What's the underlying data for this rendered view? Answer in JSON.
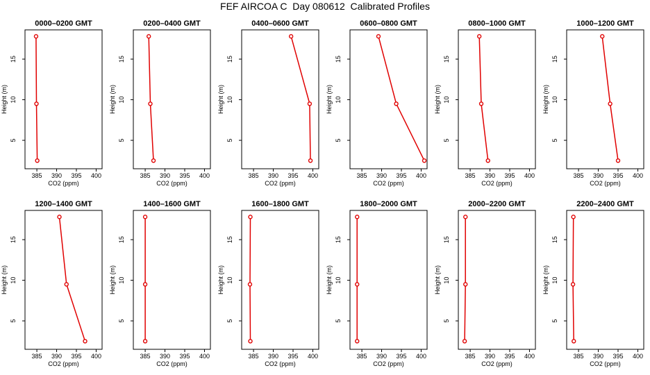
{
  "title": "FEF AIRCOA C  Day 080612  Calibrated Profiles",
  "colors": {
    "series": "#e00000",
    "axis": "#000000",
    "background": "#ffffff"
  },
  "chart_data": [
    {
      "type": "line",
      "title": "0000–0200 GMT",
      "xlabel": "CO2 (ppm)",
      "ylabel": "Height (m)",
      "xlim": [
        382,
        401.5
      ],
      "ylim": [
        1.5,
        18.6
      ],
      "xticks": [
        385,
        390,
        395,
        400
      ],
      "yticks": [
        5,
        10,
        15
      ],
      "grid": false,
      "series": [
        {
          "x": [
            384.8,
            384.9,
            385.1
          ],
          "y": [
            17.8,
            9.5,
            2.5
          ]
        }
      ]
    },
    {
      "type": "line",
      "title": "0200–0400 GMT",
      "xlabel": "CO2 (ppm)",
      "ylabel": "Height (m)",
      "xlim": [
        382,
        401.5
      ],
      "ylim": [
        1.5,
        18.6
      ],
      "xticks": [
        385,
        390,
        395,
        400
      ],
      "yticks": [
        5,
        10,
        15
      ],
      "grid": false,
      "series": [
        {
          "x": [
            385.9,
            386.3,
            387.1
          ],
          "y": [
            17.8,
            9.5,
            2.5
          ]
        }
      ]
    },
    {
      "type": "line",
      "title": "0400–0600 GMT",
      "xlabel": "CO2 (ppm)",
      "ylabel": "Height (m)",
      "xlim": [
        382,
        401.5
      ],
      "ylim": [
        1.5,
        18.6
      ],
      "xticks": [
        385,
        390,
        395,
        400
      ],
      "yticks": [
        5,
        10,
        15
      ],
      "grid": false,
      "series": [
        {
          "x": [
            394.5,
            399.2,
            399.4
          ],
          "y": [
            17.8,
            9.5,
            2.5
          ]
        }
      ]
    },
    {
      "type": "line",
      "title": "0600–0800 GMT",
      "xlabel": "CO2 (ppm)",
      "ylabel": "Height (m)",
      "xlim": [
        382,
        401.5
      ],
      "ylim": [
        1.5,
        18.6
      ],
      "xticks": [
        385,
        390,
        395,
        400
      ],
      "yticks": [
        5,
        10,
        15
      ],
      "grid": false,
      "series": [
        {
          "x": [
            389.2,
            393.7,
            400.8
          ],
          "y": [
            17.8,
            9.5,
            2.5
          ]
        }
      ]
    },
    {
      "type": "line",
      "title": "0800–1000 GMT",
      "xlabel": "CO2 (ppm)",
      "ylabel": "Height (m)",
      "xlim": [
        382,
        401.5
      ],
      "ylim": [
        1.5,
        18.6
      ],
      "xticks": [
        385,
        390,
        395,
        400
      ],
      "yticks": [
        5,
        10,
        15
      ],
      "grid": false,
      "series": [
        {
          "x": [
            387.3,
            387.8,
            389.5
          ],
          "y": [
            17.8,
            9.5,
            2.5
          ]
        }
      ]
    },
    {
      "type": "line",
      "title": "1000–1200 GMT",
      "xlabel": "CO2 (ppm)",
      "ylabel": "Height (m)",
      "xlim": [
        382,
        401.5
      ],
      "ylim": [
        1.5,
        18.6
      ],
      "xticks": [
        385,
        390,
        395,
        400
      ],
      "yticks": [
        5,
        10,
        15
      ],
      "grid": false,
      "series": [
        {
          "x": [
            391.0,
            393.0,
            395.0
          ],
          "y": [
            17.8,
            9.5,
            2.5
          ]
        }
      ]
    },
    {
      "type": "line",
      "title": "1200–1400 GMT",
      "xlabel": "CO2 (ppm)",
      "ylabel": "Height (m)",
      "xlim": [
        382,
        401.5
      ],
      "ylim": [
        1.5,
        18.6
      ],
      "xticks": [
        385,
        390,
        395,
        400
      ],
      "yticks": [
        5,
        10,
        15
      ],
      "grid": false,
      "series": [
        {
          "x": [
            390.7,
            392.5,
            397.2
          ],
          "y": [
            17.8,
            9.5,
            2.5
          ]
        }
      ]
    },
    {
      "type": "line",
      "title": "1400–1600 GMT",
      "xlabel": "CO2 (ppm)",
      "ylabel": "Height (m)",
      "xlim": [
        382,
        401.5
      ],
      "ylim": [
        1.5,
        18.6
      ],
      "xticks": [
        385,
        390,
        395,
        400
      ],
      "yticks": [
        5,
        10,
        15
      ],
      "grid": false,
      "series": [
        {
          "x": [
            385.0,
            385.0,
            385.0
          ],
          "y": [
            17.8,
            9.5,
            2.5
          ]
        }
      ]
    },
    {
      "type": "line",
      "title": "1600–1800 GMT",
      "xlabel": "CO2 (ppm)",
      "ylabel": "Height (m)",
      "xlim": [
        382,
        401.5
      ],
      "ylim": [
        1.5,
        18.6
      ],
      "xticks": [
        385,
        390,
        395,
        400
      ],
      "yticks": [
        5,
        10,
        15
      ],
      "grid": false,
      "series": [
        {
          "x": [
            384.2,
            384.1,
            384.2
          ],
          "y": [
            17.8,
            9.5,
            2.5
          ]
        }
      ]
    },
    {
      "type": "line",
      "title": "1800–2000 GMT",
      "xlabel": "CO2 (ppm)",
      "ylabel": "Height (m)",
      "xlim": [
        382,
        401.5
      ],
      "ylim": [
        1.5,
        18.6
      ],
      "xticks": [
        385,
        390,
        395,
        400
      ],
      "yticks": [
        5,
        10,
        15
      ],
      "grid": false,
      "series": [
        {
          "x": [
            383.8,
            383.8,
            383.8
          ],
          "y": [
            17.8,
            9.5,
            2.5
          ]
        }
      ]
    },
    {
      "type": "line",
      "title": "2000–2200 GMT",
      "xlabel": "CO2 (ppm)",
      "ylabel": "Height (m)",
      "xlim": [
        382,
        401.5
      ],
      "ylim": [
        1.5,
        18.6
      ],
      "xticks": [
        385,
        390,
        395,
        400
      ],
      "yticks": [
        5,
        10,
        15
      ],
      "grid": false,
      "series": [
        {
          "x": [
            383.8,
            383.8,
            383.6
          ],
          "y": [
            17.8,
            9.5,
            2.5
          ]
        }
      ]
    },
    {
      "type": "line",
      "title": "2200–2400 GMT",
      "xlabel": "CO2 (ppm)",
      "ylabel": "Height (m)",
      "xlim": [
        382,
        401.5
      ],
      "ylim": [
        1.5,
        18.6
      ],
      "xticks": [
        385,
        390,
        395,
        400
      ],
      "yticks": [
        5,
        10,
        15
      ],
      "grid": false,
      "series": [
        {
          "x": [
            383.7,
            383.6,
            383.8
          ],
          "y": [
            17.8,
            9.5,
            2.5
          ]
        }
      ]
    }
  ]
}
